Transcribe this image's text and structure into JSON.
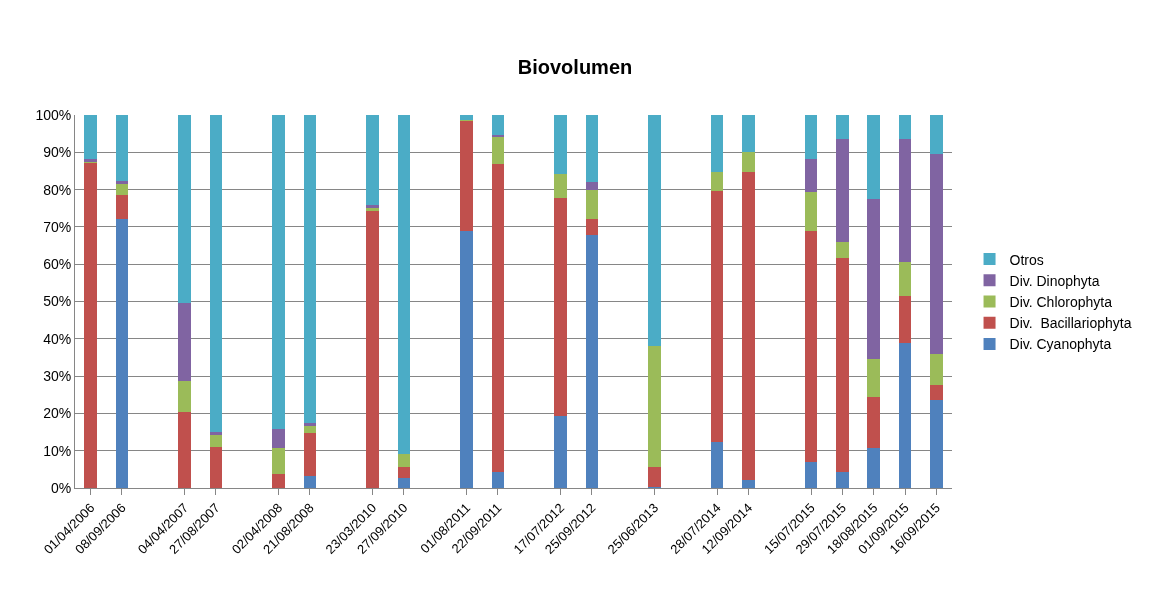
{
  "chart_data": {
    "type": "bar",
    "title": "Biovolumen",
    "stacked": true,
    "categories": [
      "01/04/2006",
      "08/09/2006",
      null,
      "04/04/2007",
      "27/08/2007",
      null,
      "02/04/2008",
      "21/08/2008",
      null,
      "23/03/2010",
      "27/09/2010",
      null,
      "01/08/2011",
      "22/09/2011",
      null,
      "17/07/2012",
      "25/09/2012",
      null,
      "25/06/2013",
      null,
      "28/07/2014",
      "12/09/2014",
      null,
      "15/07/2015",
      "29/07/2015",
      "18/08/2015",
      "01/09/2015",
      "16/09/2015"
    ],
    "series": [
      {
        "name": "Div. Cyanophyta",
        "color": "#4f81bd",
        "values": [
          0,
          72.1,
          null,
          0,
          0,
          null,
          0,
          3.2,
          null,
          0,
          2.8,
          null,
          68.8,
          4.4,
          null,
          19.4,
          67.8,
          null,
          0.4,
          null,
          12.4,
          2.2,
          null,
          7.1,
          4.4,
          10.8,
          38.8,
          23.5
        ]
      },
      {
        "name": "Div.  Bacillariophyta",
        "color": "#c0504d",
        "values": [
          87.3,
          6.4,
          null,
          20.5,
          11.1,
          null,
          3.8,
          11.5,
          null,
          74.5,
          2.7,
          null,
          29.6,
          82.5,
          null,
          58.3,
          4.3,
          null,
          5.1,
          null,
          67.3,
          82.5,
          null,
          61.7,
          57.2,
          13.5,
          12.6,
          4.0
        ]
      },
      {
        "name": "Div. Chlorophyta",
        "color": "#9bbb59",
        "values": [
          0.3,
          3.0,
          null,
          8.1,
          3.2,
          null,
          7.0,
          1.8,
          null,
          0.5,
          3.5,
          null,
          0.3,
          7.2,
          null,
          6.5,
          7.8,
          null,
          32.5,
          null,
          5.0,
          5.4,
          null,
          10.5,
          4.3,
          10.4,
          9.1,
          8.3
        ]
      },
      {
        "name": "Div. Dinophyta",
        "color": "#8064a2",
        "values": [
          0.5,
          0.9,
          null,
          21.0,
          0.8,
          null,
          4.9,
          1.0,
          null,
          0.8,
          0,
          null,
          0,
          0.6,
          null,
          0,
          2.1,
          null,
          0,
          null,
          0,
          0,
          null,
          8.9,
          27.7,
          42.7,
          33.1,
          53.7
        ]
      },
      {
        "name": "Otros",
        "color": "#4bacc6",
        "values": [
          11.9,
          17.6,
          null,
          50.4,
          84.9,
          null,
          84.3,
          82.5,
          null,
          24.2,
          91.0,
          null,
          1.3,
          5.3,
          null,
          15.8,
          18.0,
          null,
          62.0,
          null,
          15.3,
          9.9,
          null,
          11.8,
          6.4,
          22.6,
          6.4,
          10.5
        ]
      }
    ],
    "ylim": [
      0,
      100
    ],
    "yticks": [
      {
        "value": 0,
        "label": "0%"
      },
      {
        "value": 10,
        "label": "10%"
      },
      {
        "value": 20,
        "label": "20%"
      },
      {
        "value": 30,
        "label": "30%"
      },
      {
        "value": 40,
        "label": "40%"
      },
      {
        "value": 50,
        "label": "50%"
      },
      {
        "value": 60,
        "label": "60%"
      },
      {
        "value": 70,
        "label": "70%"
      },
      {
        "value": 80,
        "label": "80%"
      },
      {
        "value": 90,
        "label": "90%"
      },
      {
        "value": 100,
        "label": "100%"
      }
    ],
    "grid": "y",
    "legend": "right"
  }
}
